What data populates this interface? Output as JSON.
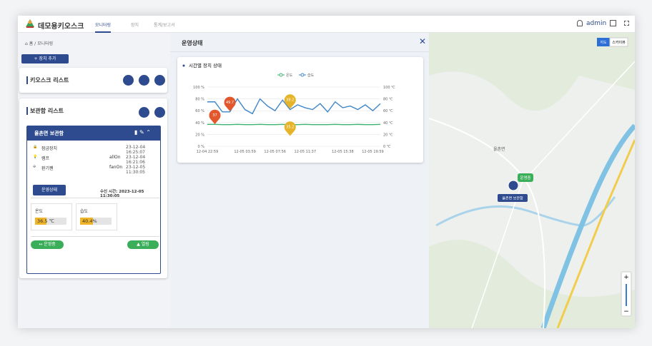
{
  "header": {
    "logo": "데모용키오스크",
    "tabs": [
      "모니터링",
      "장치",
      "통계/보고서"
    ],
    "user": "admin"
  },
  "sidebar": {
    "breadcrumb": [
      "홈",
      "모니터링"
    ],
    "add_button": "장치 추가",
    "kiosk_list": "키오스크 리스트",
    "locker_list": "보관함 리스트",
    "locker": {
      "name": "율촌면 보관함",
      "devices": [
        {
          "name": "잠금장치",
          "time": "23-12-04 16:25:07"
        },
        {
          "name": "램프",
          "state": "allOn",
          "time": "23-12-04 16:21:06"
        },
        {
          "name": "환기팬",
          "state": "fanOn",
          "time": "23-12-05 11:30:05"
        }
      ],
      "status_button": "운영상태",
      "received": "수신 시간: 2023-12-05 11:30:05",
      "temperature": {
        "label": "온도",
        "value": 36.5,
        "unit": "℃"
      },
      "humidity": {
        "label": "습도",
        "value": 40.4,
        "value_label": "40.4%"
      },
      "buttons": [
        "운영중",
        "열림"
      ]
    }
  },
  "panel": {
    "title": "운영상태"
  },
  "chart_data": {
    "type": "line",
    "title": "시간별 장치 상태",
    "categories": [
      "12-04 22:59",
      null,
      null,
      null,
      null,
      "12-05 03:59",
      null,
      null,
      null,
      "12-05 07:56",
      null,
      null,
      null,
      "12-05 11:37",
      null,
      null,
      null,
      null,
      "12-05 15:38",
      null,
      null,
      null,
      "12-05 19:59",
      null
    ],
    "series": [
      {
        "name": "온도",
        "color": "#3cb371",
        "axis": "y2",
        "values": [
          37,
          37,
          36.5,
          36.5,
          37,
          36.5,
          36.5,
          37,
          36.5,
          36.5,
          37,
          36.5,
          36.5,
          37,
          36.5,
          36.5,
          36.5,
          37,
          36.5,
          36.5,
          37,
          36.5,
          36.5,
          37
        ]
      },
      {
        "name": "습도",
        "color": "#3f86c8",
        "values": [
          75,
          75,
          58,
          58,
          80,
          62,
          55,
          80,
          68,
          60,
          78,
          62,
          70,
          65,
          62,
          72,
          58,
          75,
          65,
          68,
          62,
          70,
          60,
          72
        ]
      }
    ],
    "ylim": [
      0,
      100
    ],
    "yticks": [
      {
        "value": 0,
        "label": "0 %"
      },
      {
        "value": 20,
        "label": "20 %"
      },
      {
        "value": 40,
        "label": "40 %"
      },
      {
        "value": 60,
        "label": "60 %"
      },
      {
        "value": 80,
        "label": "80 %"
      },
      {
        "value": 100,
        "label": "100 %"
      }
    ],
    "y2lim": [
      0,
      100
    ],
    "y2ticks": [
      {
        "value": 0,
        "label": "0 ℃"
      },
      {
        "value": 20,
        "label": "20 ℃"
      },
      {
        "value": 40,
        "label": "40 ℃"
      },
      {
        "value": 60,
        "label": "60 ℃"
      },
      {
        "value": 80,
        "label": "80 ℃"
      },
      {
        "value": 100,
        "label": "100 ℃"
      }
    ],
    "grid": true,
    "mark_points": [
      49.7,
      37,
      39.2,
      35.2
    ]
  },
  "map": {
    "view_buttons": [
      "지도",
      "스카이뷰"
    ],
    "place": "율촌면",
    "status": "운영중",
    "marker": "율촌면 보관함",
    "zoom": [
      "+",
      "−"
    ]
  }
}
